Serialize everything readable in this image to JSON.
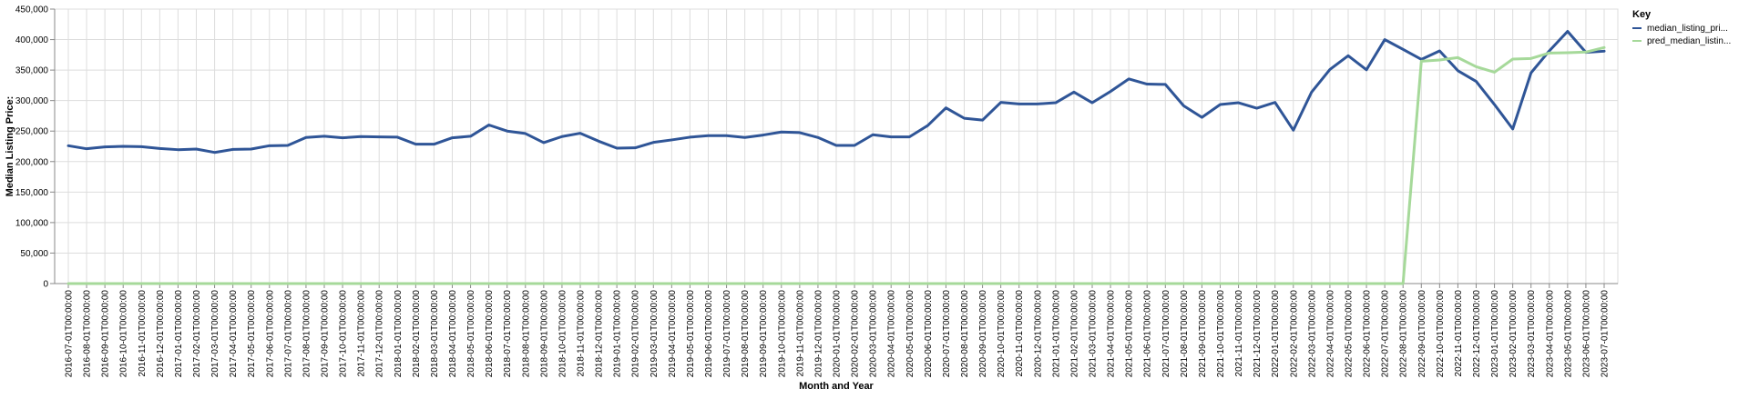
{
  "chart_data": {
    "type": "line",
    "xlabel": "Month and Year",
    "ylabel": "Median Listing Price:",
    "ylim": [
      0,
      450000
    ],
    "yticks": [
      0,
      50000,
      100000,
      150000,
      200000,
      250000,
      300000,
      350000,
      400000,
      450000
    ],
    "ytick_labels": [
      "0",
      "50,000",
      "100,000",
      "150,000",
      "200,000",
      "250,000",
      "300,000",
      "350,000",
      "400,000",
      "450,000"
    ],
    "grid": true,
    "legend": {
      "title": "Key",
      "placement": "top-right"
    },
    "categories": [
      "2016-07-01T00:00:00",
      "2016-08-01T00:00:00",
      "2016-09-01T00:00:00",
      "2016-10-01T00:00:00",
      "2016-11-01T00:00:00",
      "2016-12-01T00:00:00",
      "2017-01-01T00:00:00",
      "2017-02-01T00:00:00",
      "2017-03-01T00:00:00",
      "2017-04-01T00:00:00",
      "2017-05-01T00:00:00",
      "2017-06-01T00:00:00",
      "2017-07-01T00:00:00",
      "2017-08-01T00:00:00",
      "2017-09-01T00:00:00",
      "2017-10-01T00:00:00",
      "2017-11-01T00:00:00",
      "2017-12-01T00:00:00",
      "2018-01-01T00:00:00",
      "2018-02-01T00:00:00",
      "2018-03-01T00:00:00",
      "2018-04-01T00:00:00",
      "2018-05-01T00:00:00",
      "2018-06-01T00:00:00",
      "2018-07-01T00:00:00",
      "2018-08-01T00:00:00",
      "2018-09-01T00:00:00",
      "2018-10-01T00:00:00",
      "2018-11-01T00:00:00",
      "2018-12-01T00:00:00",
      "2019-01-01T00:00:00",
      "2019-02-01T00:00:00",
      "2019-03-01T00:00:00",
      "2019-04-01T00:00:00",
      "2019-05-01T00:00:00",
      "2019-06-01T00:00:00",
      "2019-07-01T00:00:00",
      "2019-08-01T00:00:00",
      "2019-09-01T00:00:00",
      "2019-10-01T00:00:00",
      "2019-11-01T00:00:00",
      "2019-12-01T00:00:00",
      "2020-01-01T00:00:00",
      "2020-02-01T00:00:00",
      "2020-03-01T00:00:00",
      "2020-04-01T00:00:00",
      "2020-05-01T00:00:00",
      "2020-06-01T00:00:00",
      "2020-07-01T00:00:00",
      "2020-08-01T00:00:00",
      "2020-09-01T00:00:00",
      "2020-10-01T00:00:00",
      "2020-11-01T00:00:00",
      "2020-12-01T00:00:00",
      "2021-01-01T00:00:00",
      "2021-02-01T00:00:00",
      "2021-03-01T00:00:00",
      "2021-04-01T00:00:00",
      "2021-05-01T00:00:00",
      "2021-06-01T00:00:00",
      "2021-07-01T00:00:00",
      "2021-08-01T00:00:00",
      "2021-09-01T00:00:00",
      "2021-10-01T00:00:00",
      "2021-11-01T00:00:00",
      "2021-12-01T00:00:00",
      "2022-01-01T00:00:00",
      "2022-02-01T00:00:00",
      "2022-03-01T00:00:00",
      "2022-04-01T00:00:00",
      "2022-05-01T00:00:00",
      "2022-06-01T00:00:00",
      "2022-07-01T00:00:00",
      "2022-08-01T00:00:00",
      "2022-09-01T00:00:00",
      "2022-10-01T00:00:00",
      "2022-11-01T00:00:00",
      "2022-12-01T00:00:00",
      "2023-01-01T00:00:00",
      "2023-02-01T00:00:00",
      "2023-03-01T00:00:00",
      "2023-04-01T00:00:00",
      "2023-05-01T00:00:00",
      "2023-06-01T00:00:00",
      "2023-07-01T00:00:00"
    ],
    "series": [
      {
        "name": "median_listing_pri...",
        "color": "#2f5597",
        "values": [
          226000,
          221000,
          224000,
          225000,
          224500,
          221500,
          219500,
          220500,
          215000,
          220000,
          220500,
          226000,
          226500,
          239500,
          241500,
          239000,
          241000,
          240500,
          240000,
          228500,
          228500,
          239000,
          241500,
          260000,
          250000,
          246000,
          231000,
          241000,
          246500,
          233500,
          222000,
          222500,
          231500,
          235500,
          240000,
          242500,
          242500,
          239500,
          243500,
          248500,
          247500,
          239500,
          226500,
          226500,
          244000,
          240500,
          240500,
          259000,
          288000,
          271000,
          268000,
          297000,
          294500,
          294500,
          296500,
          314000,
          296500,
          315000,
          335500,
          327000,
          326500,
          291500,
          272500,
          293500,
          296500,
          287500,
          297000,
          251500,
          314000,
          351000,
          373500,
          350500,
          400000,
          384000,
          367500,
          381500,
          349000,
          331500,
          293500,
          253500,
          345500,
          381500,
          413500,
          379000,
          381000
        ]
      },
      {
        "name": "pred_median_listin...",
        "color": "#a6d99a",
        "values": [
          0,
          0,
          0,
          0,
          0,
          0,
          0,
          0,
          0,
          0,
          0,
          0,
          0,
          0,
          0,
          0,
          0,
          0,
          0,
          0,
          0,
          0,
          0,
          0,
          0,
          0,
          0,
          0,
          0,
          0,
          0,
          0,
          0,
          0,
          0,
          0,
          0,
          0,
          0,
          0,
          0,
          0,
          0,
          0,
          0,
          0,
          0,
          0,
          0,
          0,
          0,
          0,
          0,
          0,
          0,
          0,
          0,
          0,
          0,
          0,
          0,
          0,
          0,
          0,
          0,
          0,
          0,
          0,
          0,
          0,
          0,
          0,
          0,
          0,
          364500,
          366500,
          370500,
          355500,
          346500,
          368000,
          369000,
          378000,
          378500,
          379500,
          387000
        ]
      }
    ]
  }
}
